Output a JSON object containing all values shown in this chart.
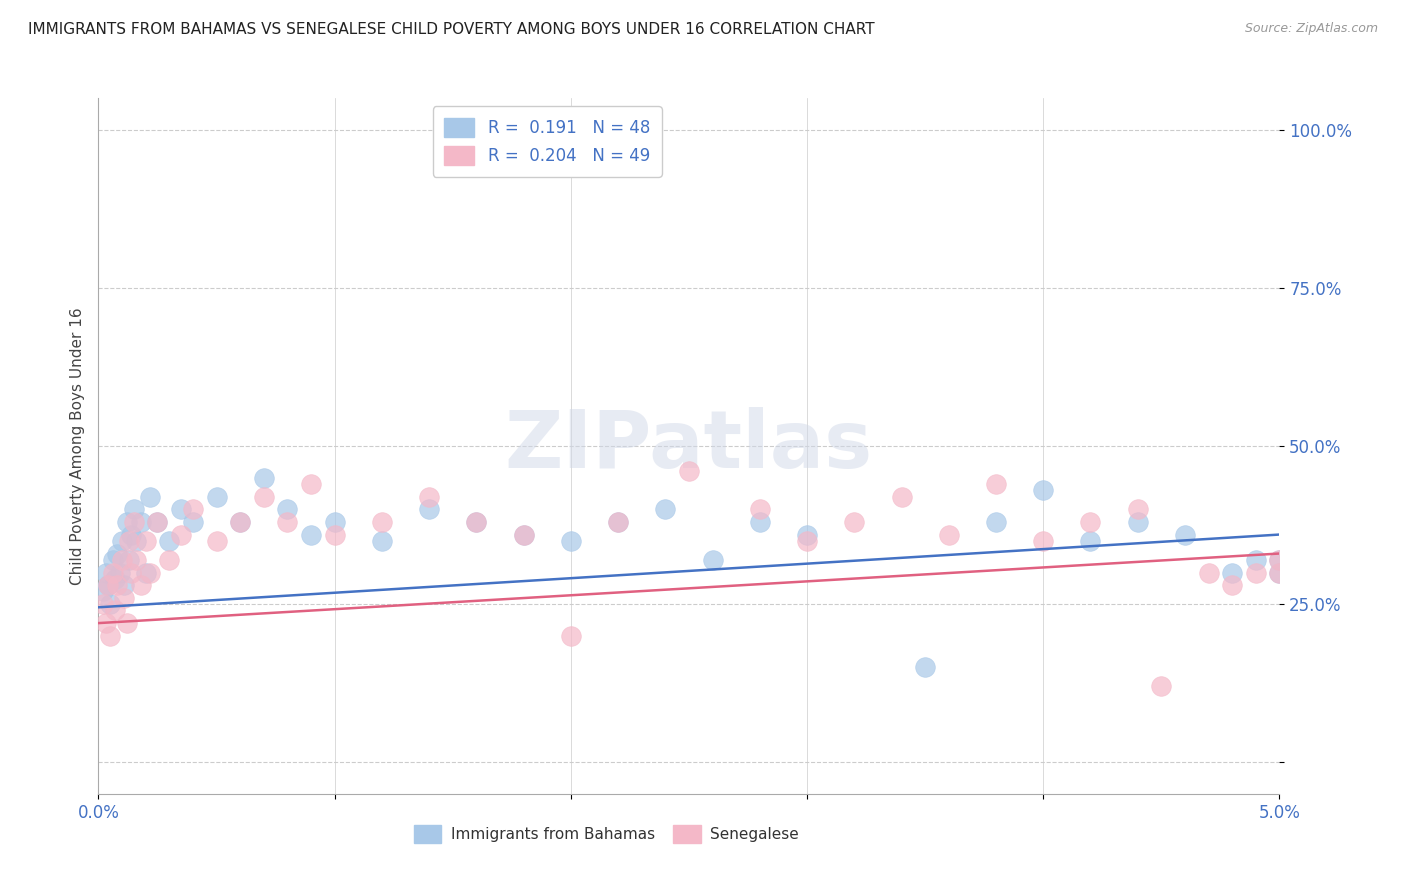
{
  "title": "IMMIGRANTS FROM BAHAMAS VS SENEGALESE CHILD POVERTY AMONG BOYS UNDER 16 CORRELATION CHART",
  "source": "Source: ZipAtlas.com",
  "ylabel": "Child Poverty Among Boys Under 16",
  "series1_label": "Immigrants from Bahamas",
  "series1_color": "#a8c8e8",
  "series1_line_color": "#4472c4",
  "series1_R": "0.191",
  "series1_N": "48",
  "series2_label": "Senegalese",
  "series2_color": "#f4b8c8",
  "series2_line_color": "#e06080",
  "series2_R": "0.204",
  "series2_N": "49",
  "series1_x": [
    0.0002,
    0.0003,
    0.0004,
    0.0005,
    0.0006,
    0.0007,
    0.0008,
    0.0009,
    0.001,
    0.0011,
    0.0012,
    0.0013,
    0.0014,
    0.0015,
    0.0016,
    0.0018,
    0.002,
    0.0022,
    0.0025,
    0.003,
    0.0035,
    0.004,
    0.005,
    0.006,
    0.007,
    0.008,
    0.009,
    0.01,
    0.012,
    0.014,
    0.016,
    0.018,
    0.02,
    0.022,
    0.024,
    0.026,
    0.028,
    0.03,
    0.035,
    0.038,
    0.04,
    0.042,
    0.044,
    0.046,
    0.048,
    0.049,
    0.05,
    0.05
  ],
  "series1_y": [
    0.27,
    0.3,
    0.28,
    0.25,
    0.32,
    0.29,
    0.33,
    0.3,
    0.35,
    0.28,
    0.38,
    0.32,
    0.36,
    0.4,
    0.35,
    0.38,
    0.3,
    0.42,
    0.38,
    0.35,
    0.4,
    0.38,
    0.42,
    0.38,
    0.45,
    0.4,
    0.36,
    0.38,
    0.35,
    0.4,
    0.38,
    0.36,
    0.35,
    0.38,
    0.4,
    0.32,
    0.38,
    0.36,
    0.15,
    0.38,
    0.43,
    0.35,
    0.38,
    0.36,
    0.3,
    0.32,
    0.3,
    0.32
  ],
  "series2_x": [
    0.0002,
    0.0003,
    0.0004,
    0.0005,
    0.0006,
    0.0007,
    0.0008,
    0.001,
    0.0011,
    0.0012,
    0.0013,
    0.0014,
    0.0015,
    0.0016,
    0.0018,
    0.002,
    0.0022,
    0.0025,
    0.003,
    0.0035,
    0.004,
    0.005,
    0.006,
    0.007,
    0.008,
    0.009,
    0.01,
    0.012,
    0.014,
    0.016,
    0.018,
    0.02,
    0.022,
    0.025,
    0.028,
    0.03,
    0.032,
    0.034,
    0.036,
    0.038,
    0.04,
    0.042,
    0.044,
    0.045,
    0.047,
    0.048,
    0.049,
    0.05,
    0.05
  ],
  "series2_y": [
    0.25,
    0.22,
    0.28,
    0.2,
    0.3,
    0.24,
    0.28,
    0.32,
    0.26,
    0.22,
    0.35,
    0.3,
    0.38,
    0.32,
    0.28,
    0.35,
    0.3,
    0.38,
    0.32,
    0.36,
    0.4,
    0.35,
    0.38,
    0.42,
    0.38,
    0.44,
    0.36,
    0.38,
    0.42,
    0.38,
    0.36,
    0.2,
    0.38,
    0.46,
    0.4,
    0.35,
    0.38,
    0.42,
    0.36,
    0.44,
    0.35,
    0.38,
    0.4,
    0.12,
    0.3,
    0.28,
    0.3,
    0.3,
    0.32
  ],
  "trend1_x": [
    0.0,
    0.05
  ],
  "trend1_y": [
    0.245,
    0.36
  ],
  "trend2_x": [
    0.0,
    0.05
  ],
  "trend2_y": [
    0.22,
    0.33
  ],
  "bg_color": "#ffffff",
  "grid_color": "#cccccc",
  "watermark": "ZIPatlas",
  "xlim": [
    0.0,
    0.05
  ],
  "ylim": [
    -0.05,
    1.05
  ],
  "y_ticks": [
    0.0,
    0.25,
    0.5,
    0.75,
    1.0
  ],
  "y_tick_labels": [
    "",
    "25.0%",
    "50.0%",
    "75.0%",
    "100.0%"
  ],
  "x_ticks": [
    0.0,
    0.01,
    0.02,
    0.03,
    0.04,
    0.05
  ],
  "x_tick_labels": [
    "0.0%",
    "",
    "",
    "",
    "",
    "5.0%"
  ]
}
